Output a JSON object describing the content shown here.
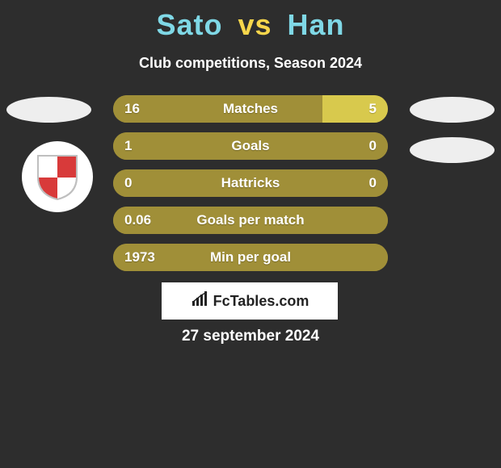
{
  "colors": {
    "background": "#2d2d2d",
    "title_p1": "#7fd8e6",
    "title_vs": "#f7d64b",
    "title_p2": "#7fd8e6",
    "subtitle": "#ffffff",
    "bar_base": "#a08f38",
    "bar_right_fill": "#d8c94d",
    "ellipse": "#eeeeee",
    "text_white": "#ffffff",
    "shield_red": "#d83a3a",
    "shield_white": "#ffffff",
    "shield_outline": "#bfbfbf"
  },
  "title": {
    "player1": "Sato",
    "vs": "vs",
    "player2": "Han"
  },
  "subtitle": "Club competitions, Season 2024",
  "bars": {
    "total_width": 340,
    "rows": [
      {
        "label": "Matches",
        "left_val": "16",
        "right_val": "5",
        "left_num": 16,
        "right_num": 5
      },
      {
        "label": "Goals",
        "left_val": "1",
        "right_val": "0",
        "left_num": 1,
        "right_num": 0
      },
      {
        "label": "Hattricks",
        "left_val": "0",
        "right_val": "0",
        "left_num": 0,
        "right_num": 0
      },
      {
        "label": "Goals per match",
        "left_val": "0.06",
        "right_val": "",
        "left_num": 0.06,
        "right_num": 0
      },
      {
        "label": "Min per goal",
        "left_val": "1973",
        "right_val": "",
        "left_num": 1973,
        "right_num": 0
      }
    ]
  },
  "site": {
    "text": "FcTables.com"
  },
  "date": "27 september 2024"
}
